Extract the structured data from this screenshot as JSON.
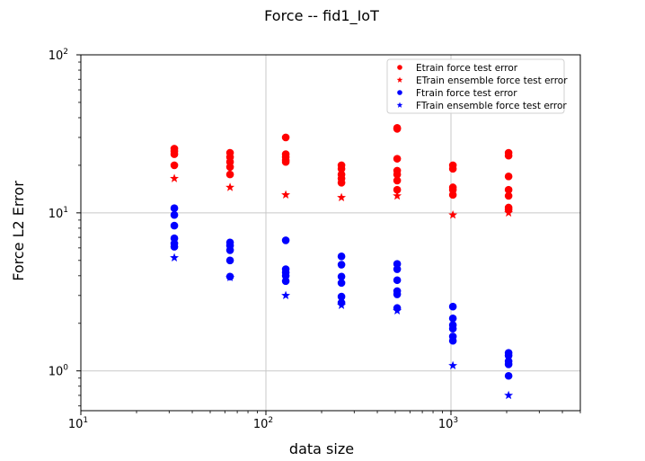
{
  "chart_data": {
    "type": "scatter",
    "title": "Force -- fid1_IoT",
    "xlabel": "data size",
    "ylabel": "Force L2 Error",
    "xscale": "log",
    "yscale": "log",
    "xlim": [
      10,
      5000
    ],
    "ylim": [
      0.56,
      100
    ],
    "grid": true,
    "legend_position": "top-right",
    "xticks": [
      {
        "base": "10",
        "exp": "1",
        "value": 10
      },
      {
        "base": "10",
        "exp": "2",
        "value": 100
      },
      {
        "base": "10",
        "exp": "3",
        "value": 1000
      }
    ],
    "yticks": [
      {
        "base": "10",
        "exp": "0",
        "value": 1
      },
      {
        "base": "10",
        "exp": "1",
        "value": 10
      },
      {
        "base": "10",
        "exp": "2",
        "value": 100
      }
    ],
    "series": [
      {
        "name": "Etrain force test error",
        "marker": "circle",
        "color": "#ff0000",
        "points": [
          [
            32,
            25.5
          ],
          [
            32,
            24.5
          ],
          [
            32,
            23.5
          ],
          [
            32,
            20
          ],
          [
            64,
            24
          ],
          [
            64,
            22.5
          ],
          [
            64,
            21
          ],
          [
            64,
            19.5
          ],
          [
            64,
            17.5
          ],
          [
            128,
            30
          ],
          [
            128,
            23.5
          ],
          [
            128,
            22.5
          ],
          [
            128,
            21.5
          ],
          [
            128,
            21
          ],
          [
            256,
            20
          ],
          [
            256,
            19
          ],
          [
            256,
            17.5
          ],
          [
            256,
            16.5
          ],
          [
            256,
            15.5
          ],
          [
            512,
            34.5
          ],
          [
            512,
            34
          ],
          [
            512,
            22
          ],
          [
            512,
            18.5
          ],
          [
            512,
            17.5
          ],
          [
            512,
            16
          ],
          [
            512,
            14
          ],
          [
            1024,
            20
          ],
          [
            1024,
            19
          ],
          [
            1024,
            14.5
          ],
          [
            1024,
            14
          ],
          [
            1024,
            13
          ],
          [
            2048,
            24
          ],
          [
            2048,
            23
          ],
          [
            2048,
            17
          ],
          [
            2048,
            14
          ],
          [
            2048,
            12.8
          ],
          [
            2048,
            10.8
          ],
          [
            2048,
            10.5
          ]
        ]
      },
      {
        "name": "ETrain ensemble force test error",
        "marker": "star",
        "color": "#ff0000",
        "points": [
          [
            32,
            16.5
          ],
          [
            64,
            14.5
          ],
          [
            128,
            13
          ],
          [
            256,
            12.5
          ],
          [
            512,
            12.8
          ],
          [
            1024,
            9.7
          ],
          [
            2048,
            10
          ]
        ]
      },
      {
        "name": "Ftrain force test error",
        "marker": "circle",
        "color": "#0000ff",
        "points": [
          [
            32,
            10.7
          ],
          [
            32,
            9.7
          ],
          [
            32,
            8.3
          ],
          [
            32,
            6.9
          ],
          [
            32,
            6.4
          ],
          [
            32,
            6.1
          ],
          [
            64,
            6.5
          ],
          [
            64,
            6.2
          ],
          [
            64,
            5.8
          ],
          [
            64,
            5.0
          ],
          [
            64,
            3.95
          ],
          [
            128,
            6.7
          ],
          [
            128,
            4.4
          ],
          [
            128,
            4.2
          ],
          [
            128,
            4.0
          ],
          [
            128,
            3.7
          ],
          [
            256,
            5.3
          ],
          [
            256,
            4.7
          ],
          [
            256,
            3.95
          ],
          [
            256,
            3.6
          ],
          [
            256,
            2.95
          ],
          [
            256,
            2.7
          ],
          [
            512,
            4.75
          ],
          [
            512,
            4.4
          ],
          [
            512,
            3.75
          ],
          [
            512,
            3.2
          ],
          [
            512,
            3.05
          ],
          [
            512,
            2.5
          ],
          [
            1024,
            2.55
          ],
          [
            1024,
            2.15
          ],
          [
            1024,
            1.95
          ],
          [
            1024,
            1.85
          ],
          [
            1024,
            1.65
          ],
          [
            1024,
            1.55
          ],
          [
            2048,
            1.3
          ],
          [
            2048,
            1.25
          ],
          [
            2048,
            1.15
          ],
          [
            2048,
            1.1
          ],
          [
            2048,
            0.93
          ]
        ]
      },
      {
        "name": "FTrain ensemble force test error",
        "marker": "star",
        "color": "#0000ff",
        "points": [
          [
            32,
            5.2
          ],
          [
            64,
            3.9
          ],
          [
            128,
            3.0
          ],
          [
            256,
            2.6
          ],
          [
            512,
            2.4
          ],
          [
            1024,
            1.08
          ],
          [
            2048,
            0.7
          ]
        ]
      }
    ]
  }
}
